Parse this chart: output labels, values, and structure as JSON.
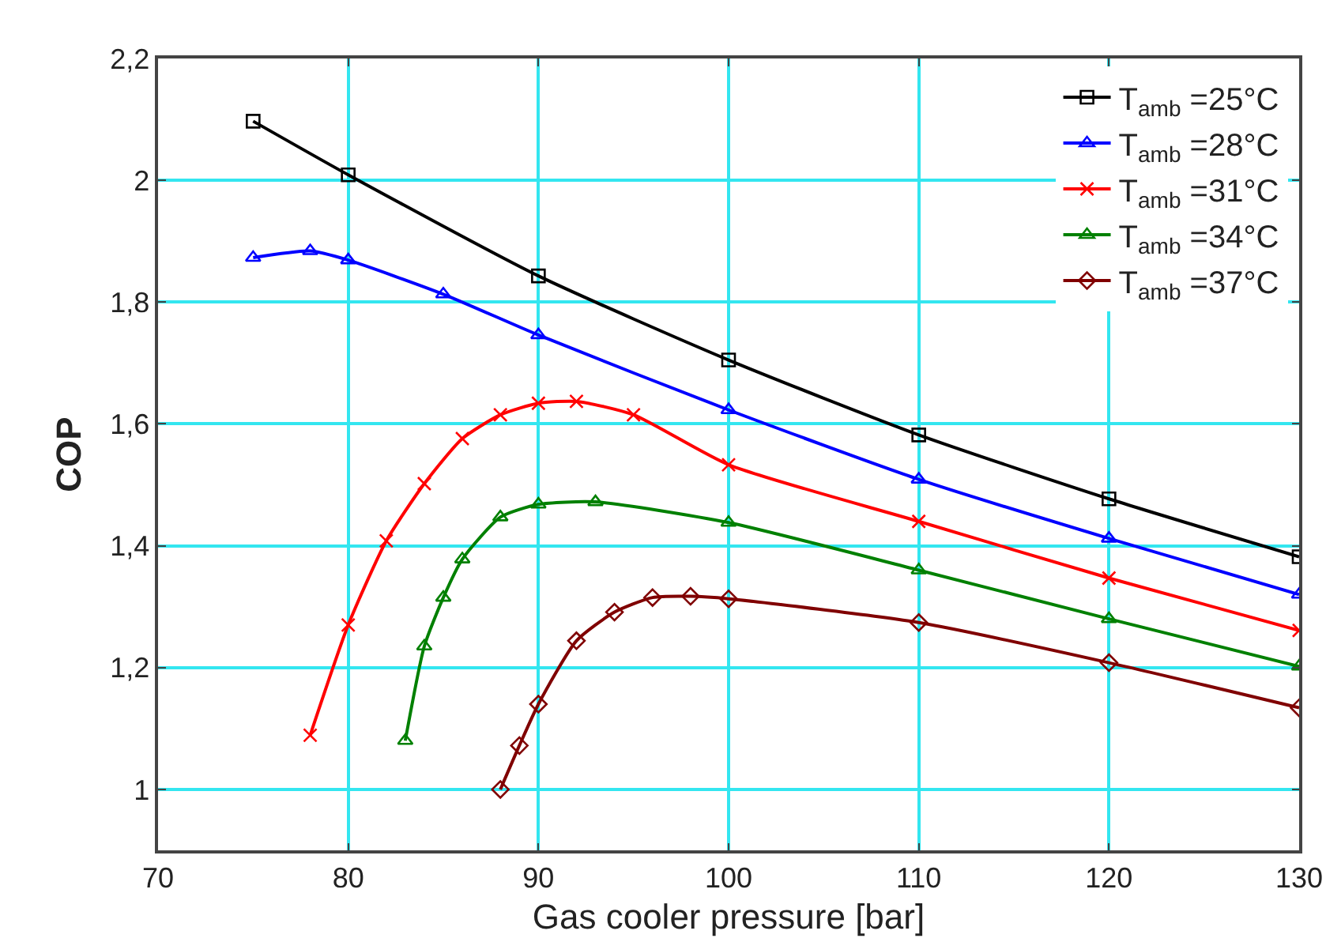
{
  "chart_data": {
    "type": "line",
    "xlabel": "Gas cooler pressure [bar]",
    "ylabel": "COP",
    "xlim": [
      70,
      130
    ],
    "xticks": [
      70,
      80,
      90,
      100,
      110,
      120,
      130
    ],
    "ylim": [
      0.9,
      2.2
    ],
    "yticks": [
      {
        "value": 1,
        "label": "1"
      },
      {
        "value": 1.2,
        "label": "1,2"
      },
      {
        "value": 1.4,
        "label": "1,4"
      },
      {
        "value": 1.6,
        "label": "1,6"
      },
      {
        "value": 1.8,
        "label": "1,8"
      },
      {
        "value": 2,
        "label": "2"
      },
      {
        "value": 2.2,
        "label": "2,2"
      }
    ],
    "grid": true,
    "legend": "top right",
    "series": [
      {
        "name": "T$_{amb}$ =25°C",
        "color": "#000000",
        "marker": "square",
        "x": [
          75,
          80,
          90,
          100,
          110,
          120,
          130
        ],
        "values": [
          2.097,
          2.009,
          1.843,
          1.705,
          1.582,
          1.477,
          1.382
        ]
      },
      {
        "name": "T$_{amb}$ =28°C",
        "color": "#0000ff",
        "marker": "triangle",
        "x": [
          75,
          78,
          80,
          85,
          90,
          100,
          110,
          120,
          130
        ],
        "values": [
          1.873,
          1.884,
          1.869,
          1.813,
          1.746,
          1.623,
          1.509,
          1.412,
          1.32
        ]
      },
      {
        "name": "T$_{amb}$ =31°C",
        "color": "#ff0000",
        "marker": "cross",
        "x": [
          78,
          80,
          82,
          84,
          86,
          88,
          90,
          92,
          95,
          100,
          110,
          120,
          130
        ],
        "values": [
          1.089,
          1.27,
          1.408,
          1.502,
          1.576,
          1.615,
          1.634,
          1.637,
          1.615,
          1.533,
          1.44,
          1.347,
          1.261
        ]
      },
      {
        "name": "T$_{amb}$ =34°C",
        "color": "#008000",
        "marker": "triangle",
        "x": [
          83,
          84,
          85,
          86,
          88,
          90,
          93,
          100,
          110,
          120,
          130
        ],
        "values": [
          1.08,
          1.235,
          1.315,
          1.378,
          1.447,
          1.468,
          1.472,
          1.438,
          1.36,
          1.28,
          1.202
        ]
      },
      {
        "name": "T$_{amb}$ =37°C",
        "color": "#800000",
        "marker": "diamond",
        "x": [
          88,
          89,
          90,
          92,
          94,
          96,
          98,
          100,
          110,
          120,
          130
        ],
        "values": [
          1.0,
          1.072,
          1.14,
          1.244,
          1.291,
          1.315,
          1.317,
          1.313,
          1.274,
          1.208,
          1.134
        ]
      }
    ]
  }
}
